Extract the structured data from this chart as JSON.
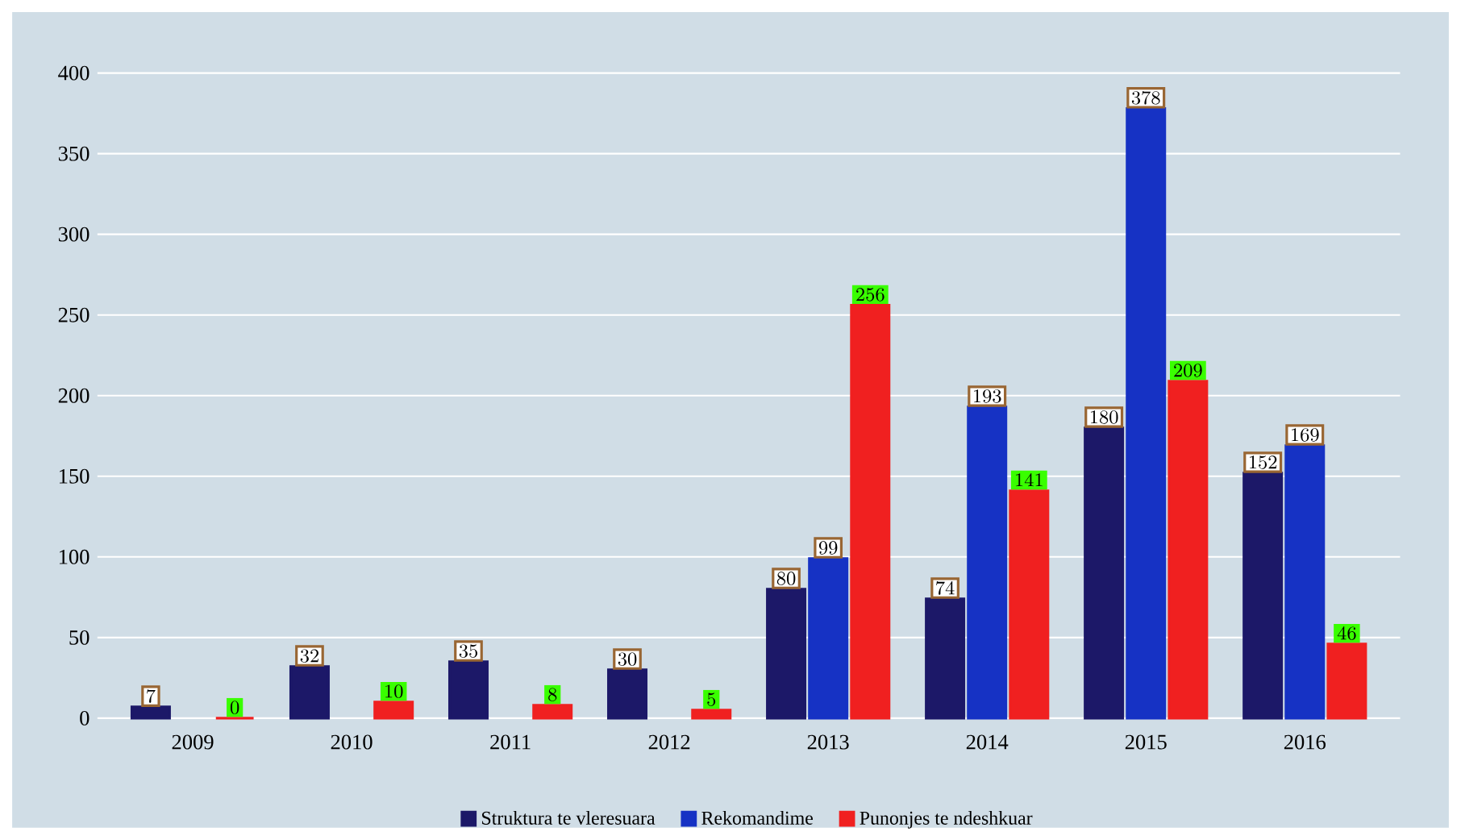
{
  "chart_data": {
    "type": "bar",
    "categories": [
      "2009",
      "2010",
      "2011",
      "2012",
      "2013",
      "2014",
      "2015",
      "2016"
    ],
    "series": [
      {
        "name": "Struktura te vleresuara",
        "color": "#1c1868",
        "values": [
          7,
          32,
          35,
          30,
          80,
          74,
          180,
          152
        ]
      },
      {
        "name": "Rekomandime",
        "color": "#1632c4",
        "values": [
          null,
          null,
          null,
          null,
          99,
          193,
          378,
          169
        ]
      },
      {
        "name": "Punonjes te ndeshkuar",
        "color": "#f02020",
        "values": [
          0,
          10,
          8,
          5,
          256,
          141,
          209,
          46
        ]
      }
    ],
    "ylim": [
      0,
      400
    ],
    "yticks": [
      0,
      50,
      100,
      150,
      200,
      250,
      300,
      350,
      400
    ],
    "grid": "y",
    "legend": "bottom",
    "data_labels": true
  }
}
